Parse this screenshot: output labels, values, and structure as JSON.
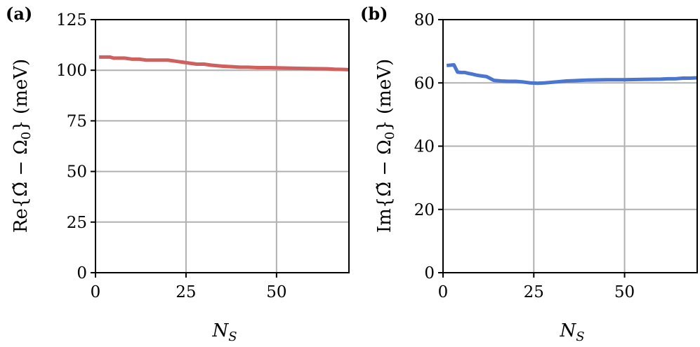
{
  "chart_data": [
    {
      "type": "line",
      "panel_label": "(a)",
      "xlabel": "N_S",
      "xlabel_main": "N",
      "xlabel_sub": "S",
      "ylabel": "Re{Ω̃ − Ω₀} (meV)",
      "ylabel_prefix": "Re{",
      "ylabel_omega_tilde": "Ω̃",
      "ylabel_minus": " − ",
      "ylabel_omega": "Ω",
      "ylabel_omega_sub": "0",
      "ylabel_suffix": "} (meV)",
      "xlim": [
        0,
        70
      ],
      "ylim": [
        0,
        125
      ],
      "xticks": [
        0,
        25,
        50
      ],
      "yticks": [
        0,
        25,
        50,
        75,
        100,
        125
      ],
      "grid": true,
      "color": "#d0605e",
      "x": [
        1,
        2,
        3,
        4,
        5,
        6,
        7,
        8,
        10,
        12,
        14,
        16,
        18,
        20,
        22,
        24,
        26,
        28,
        30,
        32,
        35,
        38,
        40,
        42,
        45,
        48,
        50,
        55,
        60,
        64,
        66,
        68,
        70
      ],
      "y": [
        106.5,
        106.5,
        106.5,
        106.5,
        106,
        106,
        106,
        106,
        105.5,
        105.5,
        105,
        105,
        105,
        105,
        104.5,
        104,
        103.5,
        103,
        103,
        102.5,
        102,
        101.7,
        101.5,
        101.5,
        101.3,
        101.3,
        101.2,
        101,
        100.8,
        100.7,
        100.5,
        100.4,
        100.3
      ]
    },
    {
      "type": "line",
      "panel_label": "(b)",
      "xlabel": "N_S",
      "xlabel_main": "N",
      "xlabel_sub": "S",
      "ylabel": "Im{Ω̃ − Ω₀} (meV)",
      "ylabel_prefix": "Im{",
      "ylabel_omega_tilde": "Ω̃",
      "ylabel_minus": " − ",
      "ylabel_omega": "Ω",
      "ylabel_omega_sub": "0",
      "ylabel_suffix": "} (meV)",
      "xlim": [
        0,
        70
      ],
      "ylim": [
        0,
        80
      ],
      "xticks": [
        0,
        25,
        50
      ],
      "yticks": [
        0,
        20,
        40,
        60,
        80
      ],
      "grid": true,
      "color": "#4a76cf",
      "x": [
        1,
        2,
        3,
        4,
        5,
        6,
        7,
        8,
        9,
        10,
        12,
        14,
        16,
        18,
        20,
        22,
        24,
        26,
        28,
        30,
        32,
        34,
        36,
        38,
        40,
        45,
        50,
        55,
        60,
        62,
        64,
        66,
        68,
        70
      ],
      "y": [
        65.5,
        65.6,
        65.7,
        63.4,
        63.3,
        63.3,
        63.0,
        62.8,
        62.5,
        62.3,
        62.0,
        60.8,
        60.6,
        60.5,
        60.5,
        60.3,
        60.0,
        59.9,
        60.0,
        60.2,
        60.4,
        60.6,
        60.7,
        60.8,
        60.9,
        61.0,
        61.0,
        61.1,
        61.2,
        61.3,
        61.3,
        61.5,
        61.5,
        61.6
      ]
    }
  ]
}
